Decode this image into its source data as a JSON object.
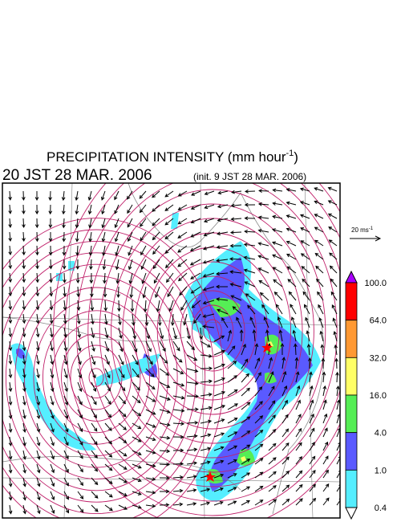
{
  "header": {
    "title": "PRECIPITATION INTENSITY (mm hour",
    "title_exponent": "-1",
    "title_close": ")",
    "valid_time": "20 JST 28 MAR. 2006",
    "init_time": "(init. 9 JST 28 MAR. 2006)"
  },
  "vector_legend": {
    "label": "20 ms",
    "exponent": "-1"
  },
  "colorbar": {
    "labels": [
      "100.0",
      "64.0",
      "32.0",
      "16.0",
      "4.0",
      "1.0",
      "0.4"
    ],
    "colors": [
      "#ff0000",
      "#ff9933",
      "#ffff66",
      "#55ee55",
      "#5a5aff",
      "#55eeff"
    ],
    "over_color": "#aa00ff",
    "under_color": "#ffffff"
  }
}
